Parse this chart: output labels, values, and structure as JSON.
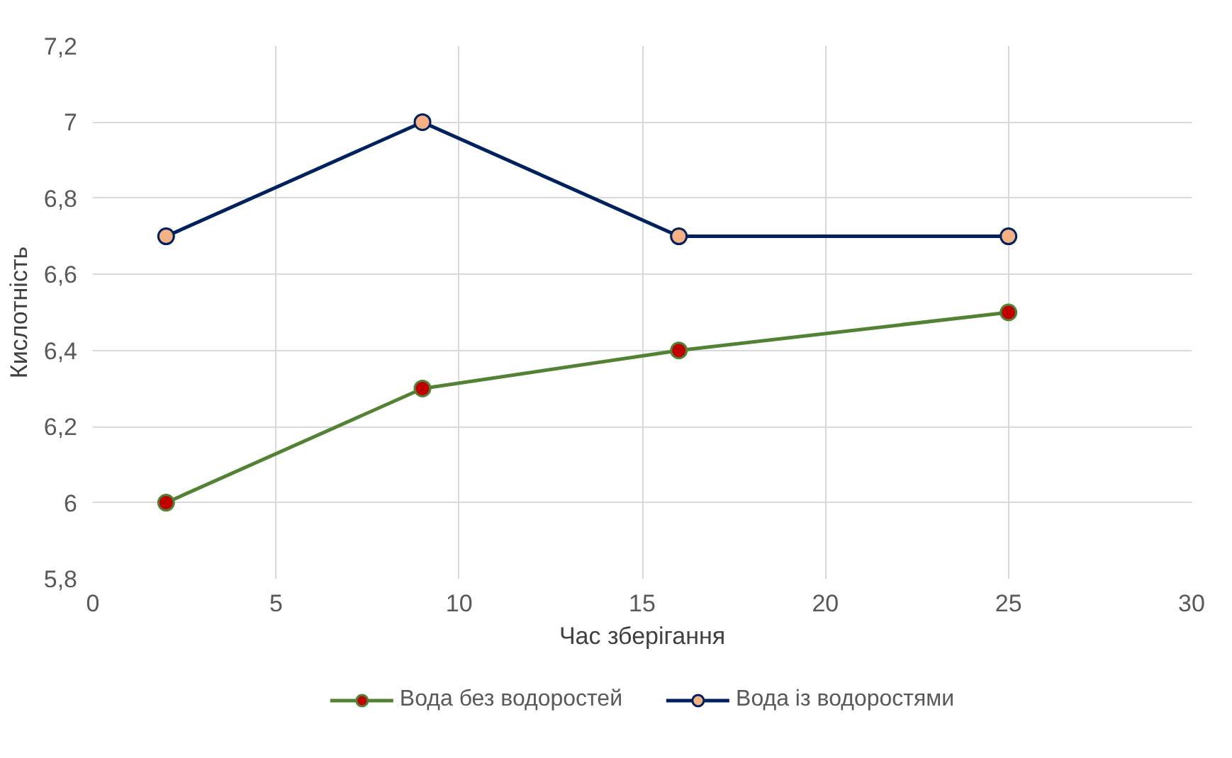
{
  "chart_data": {
    "type": "line",
    "xlabel": "Час зберігання",
    "ylabel": "Кислотність",
    "x": [
      2,
      9,
      16,
      25
    ],
    "series": [
      {
        "name": "Вода без водоростей",
        "color": "#548235",
        "values": [
          6.0,
          6.3,
          6.4,
          6.5
        ]
      },
      {
        "name": "Вода із водоростями",
        "color": "#002060",
        "values": [
          6.7,
          7.0,
          6.7,
          6.7
        ]
      }
    ],
    "xlim": [
      0,
      30
    ],
    "xticks": [
      0,
      5,
      10,
      15,
      20,
      25,
      30
    ],
    "ylim": [
      5.8,
      7.2
    ],
    "yticks": [
      {
        "value": 5.8,
        "label": "5,8"
      },
      {
        "value": 6,
        "label": "6"
      },
      {
        "value": 6.2,
        "label": "6,2"
      },
      {
        "value": 6.4,
        "label": "6,4"
      },
      {
        "value": 6.6,
        "label": "6,6"
      },
      {
        "value": 6.8,
        "label": "6,8"
      },
      {
        "value": 7,
        "label": "7"
      },
      {
        "value": 7.2,
        "label": "7,2"
      }
    ],
    "grid": true,
    "legend": "bottom",
    "marker": "circle",
    "line_style": "solid"
  }
}
